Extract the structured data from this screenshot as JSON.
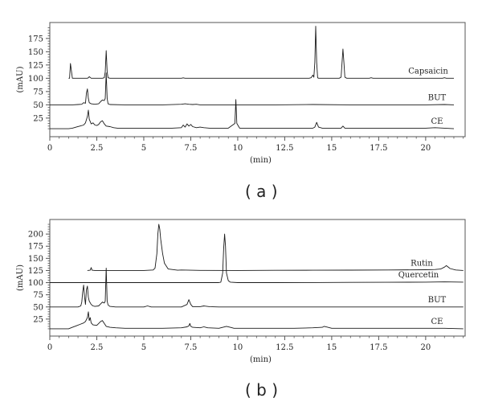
{
  "chart_data": [
    {
      "type": "line",
      "panel": "a",
      "caption": "( a )",
      "xlabel": "(min)",
      "ylabel": "(mAU)",
      "xlim": [
        0,
        22.1
      ],
      "ylim": [
        -10,
        205
      ],
      "xticks": [
        0,
        2.5,
        5,
        7.5,
        10,
        12.5,
        15,
        17.5,
        20
      ],
      "xtick_labels": [
        "0",
        "2.5",
        "5",
        "7.5",
        "10",
        "12.5",
        "15",
        "17.5",
        "20"
      ],
      "yticks": [
        25,
        50,
        75,
        100,
        125,
        150,
        175
      ],
      "ytick_labels": [
        "25",
        "50",
        "75",
        "100",
        "125",
        "150",
        "175"
      ],
      "grid": false,
      "legend": "none",
      "series": [
        {
          "name": "Capsaicin",
          "color": "#1a1a1a",
          "x": [
            1.0,
            1.05,
            1.1,
            1.2,
            2.0,
            2.05,
            2.1,
            2.2,
            2.8,
            2.9,
            2.95,
            3.0,
            3.05,
            3.1,
            3.2,
            7.0,
            7.1,
            7.2,
            13.8,
            13.9,
            14.0,
            14.05,
            14.1,
            14.15,
            14.2,
            14.25,
            14.3,
            14.4,
            15.4,
            15.5,
            15.55,
            15.6,
            15.65,
            15.7,
            15.8,
            17.0,
            17.1,
            17.2,
            20.9,
            21.0,
            21.1,
            21.5
          ],
          "y": [
            100,
            100,
            128,
            100,
            100,
            101,
            103,
            100,
            100,
            101,
            112,
            152,
            112,
            101,
            100,
            100,
            100.8,
            100,
            100,
            101,
            106,
            102,
            130,
            198,
            130,
            101,
            100,
            100,
            100,
            102,
            130,
            155,
            130,
            102,
            100,
            100,
            101,
            100,
            100,
            101,
            100,
            100
          ]
        },
        {
          "name": "BUT",
          "color": "#1a1a1a",
          "x": [
            0.0,
            1.2,
            1.5,
            1.7,
            1.8,
            1.9,
            1.95,
            2.0,
            2.05,
            2.1,
            2.2,
            2.4,
            2.6,
            2.7,
            2.8,
            2.9,
            2.95,
            3.0,
            3.05,
            3.1,
            3.2,
            4.0,
            5.0,
            6.0,
            7.0,
            7.2,
            7.4,
            7.6,
            7.8,
            8.0,
            9.0,
            10.0,
            12.0,
            14.0,
            16.0,
            18.0,
            20.0,
            21.0,
            21.5
          ],
          "y": [
            50,
            50,
            50.5,
            51,
            54,
            53,
            72,
            80,
            62,
            54,
            52,
            51,
            52,
            56,
            59,
            58,
            62,
            110,
            62,
            52,
            50.5,
            50,
            50,
            50,
            51,
            52,
            51,
            50.5,
            51,
            50,
            50,
            50,
            50,
            50.5,
            50,
            50,
            50,
            50.5,
            50
          ]
        },
        {
          "name": "CE",
          "color": "#1a1a1a",
          "x": [
            0.0,
            1.0,
            1.2,
            1.4,
            1.6,
            1.8,
            1.9,
            2.0,
            2.05,
            2.1,
            2.2,
            2.3,
            2.4,
            2.5,
            2.6,
            2.7,
            2.8,
            2.9,
            3.0,
            3.2,
            3.4,
            3.6,
            4.0,
            4.5,
            5.0,
            5.5,
            6.0,
            6.5,
            7.0,
            7.1,
            7.2,
            7.3,
            7.4,
            7.5,
            7.6,
            7.8,
            8.0,
            8.2,
            8.5,
            9.0,
            9.5,
            9.85,
            9.9,
            9.95,
            10.1,
            10.5,
            11.0,
            12.0,
            13.0,
            14.0,
            14.1,
            14.2,
            14.3,
            14.5,
            15.0,
            15.5,
            15.6,
            15.7,
            16.0,
            17.0,
            18.0,
            19.0,
            20.0,
            20.5,
            21.0,
            21.5
          ],
          "y": [
            5,
            5,
            6,
            8,
            10,
            12,
            16,
            28,
            40,
            23,
            14,
            16,
            12,
            11,
            13,
            18,
            20,
            14,
            10,
            9,
            7,
            6,
            6,
            6,
            6,
            6,
            6,
            6,
            7,
            12,
            8,
            14,
            10,
            13,
            9,
            7,
            8,
            7,
            6,
            6,
            6,
            15,
            60,
            15,
            6,
            6,
            6,
            6,
            6,
            6,
            8,
            17,
            8,
            6,
            6,
            6,
            10,
            6,
            6,
            6,
            6,
            6,
            6,
            7,
            6,
            5
          ]
        }
      ],
      "annotations": [
        {
          "text": "Capsaicin",
          "series": "Capsaicin"
        },
        {
          "text": "BUT",
          "series": "BUT"
        },
        {
          "text": "CE",
          "series": "CE"
        }
      ]
    },
    {
      "type": "line",
      "panel": "b",
      "caption": "( b )",
      "xlabel": "(min)",
      "ylabel": "(mAU)",
      "xlim": [
        0,
        22.1
      ],
      "ylim": [
        -10,
        230
      ],
      "xticks": [
        0,
        2.5,
        5,
        7.5,
        10,
        12.5,
        15,
        17.5,
        20
      ],
      "xtick_labels": [
        "0",
        "2.5",
        "5",
        "7.5",
        "10",
        "12.5",
        "15",
        "17.5",
        "20"
      ],
      "yticks": [
        25,
        50,
        75,
        100,
        125,
        150,
        175,
        200
      ],
      "ytick_labels": [
        "25",
        "50",
        "75",
        "100",
        "125",
        "150",
        "175",
        "200"
      ],
      "grid": false,
      "legend": "none",
      "series": [
        {
          "name": "Rutin",
          "color": "#1a1a1a",
          "x": [
            2.0,
            2.15,
            2.2,
            2.25,
            2.4,
            5.0,
            5.5,
            5.6,
            5.7,
            5.75,
            5.8,
            5.85,
            5.9,
            6.0,
            6.1,
            6.3,
            6.8,
            7.0,
            8.0,
            10.0,
            12.0,
            14.0,
            16.0,
            18.0,
            20.0,
            20.5,
            20.8,
            21.0,
            21.1,
            21.3,
            21.6,
            22.0
          ],
          "y": [
            125,
            125.5,
            131,
            125.5,
            125,
            125,
            126,
            130,
            160,
            200,
            220,
            210,
            190,
            160,
            140,
            128,
            125.5,
            126,
            125.3,
            125,
            125.4,
            125.6,
            125.8,
            126,
            126.5,
            127,
            128,
            132,
            135,
            129,
            126,
            125
          ]
        },
        {
          "name": "Quercetin",
          "color": "#1a1a1a",
          "x": [
            0.0,
            2.0,
            3.0,
            5.0,
            7.0,
            9.0,
            9.1,
            9.2,
            9.25,
            9.3,
            9.35,
            9.4,
            9.5,
            9.6,
            10.0,
            12.0,
            14.0,
            16.0,
            18.0,
            20.0,
            21.0,
            22.0
          ],
          "y": [
            100,
            100,
            100,
            100,
            100,
            100,
            101,
            120,
            170,
            200,
            175,
            120,
            104,
            101,
            100,
            100,
            100.3,
            100.5,
            100.8,
            101,
            101.5,
            101
          ]
        },
        {
          "name": "BUT",
          "color": "#1a1a1a",
          "x": [
            0.0,
            1.5,
            1.65,
            1.7,
            1.75,
            1.8,
            1.85,
            1.9,
            1.95,
            2.0,
            2.05,
            2.1,
            2.2,
            2.3,
            2.4,
            2.6,
            2.7,
            2.8,
            2.9,
            2.95,
            3.0,
            3.05,
            3.1,
            3.2,
            3.5,
            4.0,
            5.0,
            5.2,
            5.4,
            6.0,
            7.0,
            7.3,
            7.4,
            7.5,
            7.6,
            8.0,
            8.2,
            8.5,
            9.0,
            10.0,
            12.0,
            14.0,
            16.0,
            18.0,
            20.0,
            22.0
          ],
          "y": [
            50,
            50,
            52,
            60,
            80,
            95,
            70,
            55,
            85,
            93,
            70,
            62,
            55,
            52,
            51,
            52,
            56,
            60,
            58,
            62,
            130,
            62,
            54,
            51,
            50,
            50,
            50,
            52,
            50,
            50,
            50,
            55,
            65,
            55,
            50.5,
            50.5,
            52,
            50.5,
            50,
            50,
            50,
            50,
            50,
            50,
            50,
            50
          ]
        },
        {
          "name": "CE",
          "color": "#1a1a1a",
          "x": [
            0.0,
            1.0,
            1.2,
            1.4,
            1.6,
            1.8,
            1.9,
            2.0,
            2.05,
            2.1,
            2.15,
            2.2,
            2.3,
            2.5,
            2.7,
            2.8,
            2.9,
            3.0,
            3.2,
            3.5,
            4.0,
            5.0,
            6.0,
            7.0,
            7.3,
            7.4,
            7.45,
            7.5,
            7.6,
            8.0,
            8.2,
            8.4,
            9.0,
            9.4,
            9.6,
            9.8,
            10.0,
            11.0,
            12.0,
            13.0,
            14.0,
            14.5,
            14.6,
            14.8,
            15.0,
            16.0,
            17.0,
            18.0,
            19.0,
            20.0,
            21.0,
            22.0
          ],
          "y": [
            5,
            5,
            8,
            11,
            14,
            17,
            20,
            28,
            40,
            22,
            28,
            17,
            13,
            12,
            20,
            22,
            16,
            10,
            8,
            7,
            6,
            6,
            6,
            7,
            9,
            11,
            16,
            10,
            8,
            7,
            9,
            7,
            6,
            10,
            8,
            6,
            6,
            6,
            6,
            6,
            7,
            8,
            10,
            8,
            6,
            6,
            6,
            6,
            6,
            6,
            6,
            5
          ]
        }
      ],
      "annotations": [
        {
          "text": "Rutin",
          "series": "Rutin"
        },
        {
          "text": "Quercetin",
          "series": "Quercetin"
        },
        {
          "text": "BUT",
          "series": "BUT"
        },
        {
          "text": "CE",
          "series": "CE"
        }
      ]
    }
  ]
}
